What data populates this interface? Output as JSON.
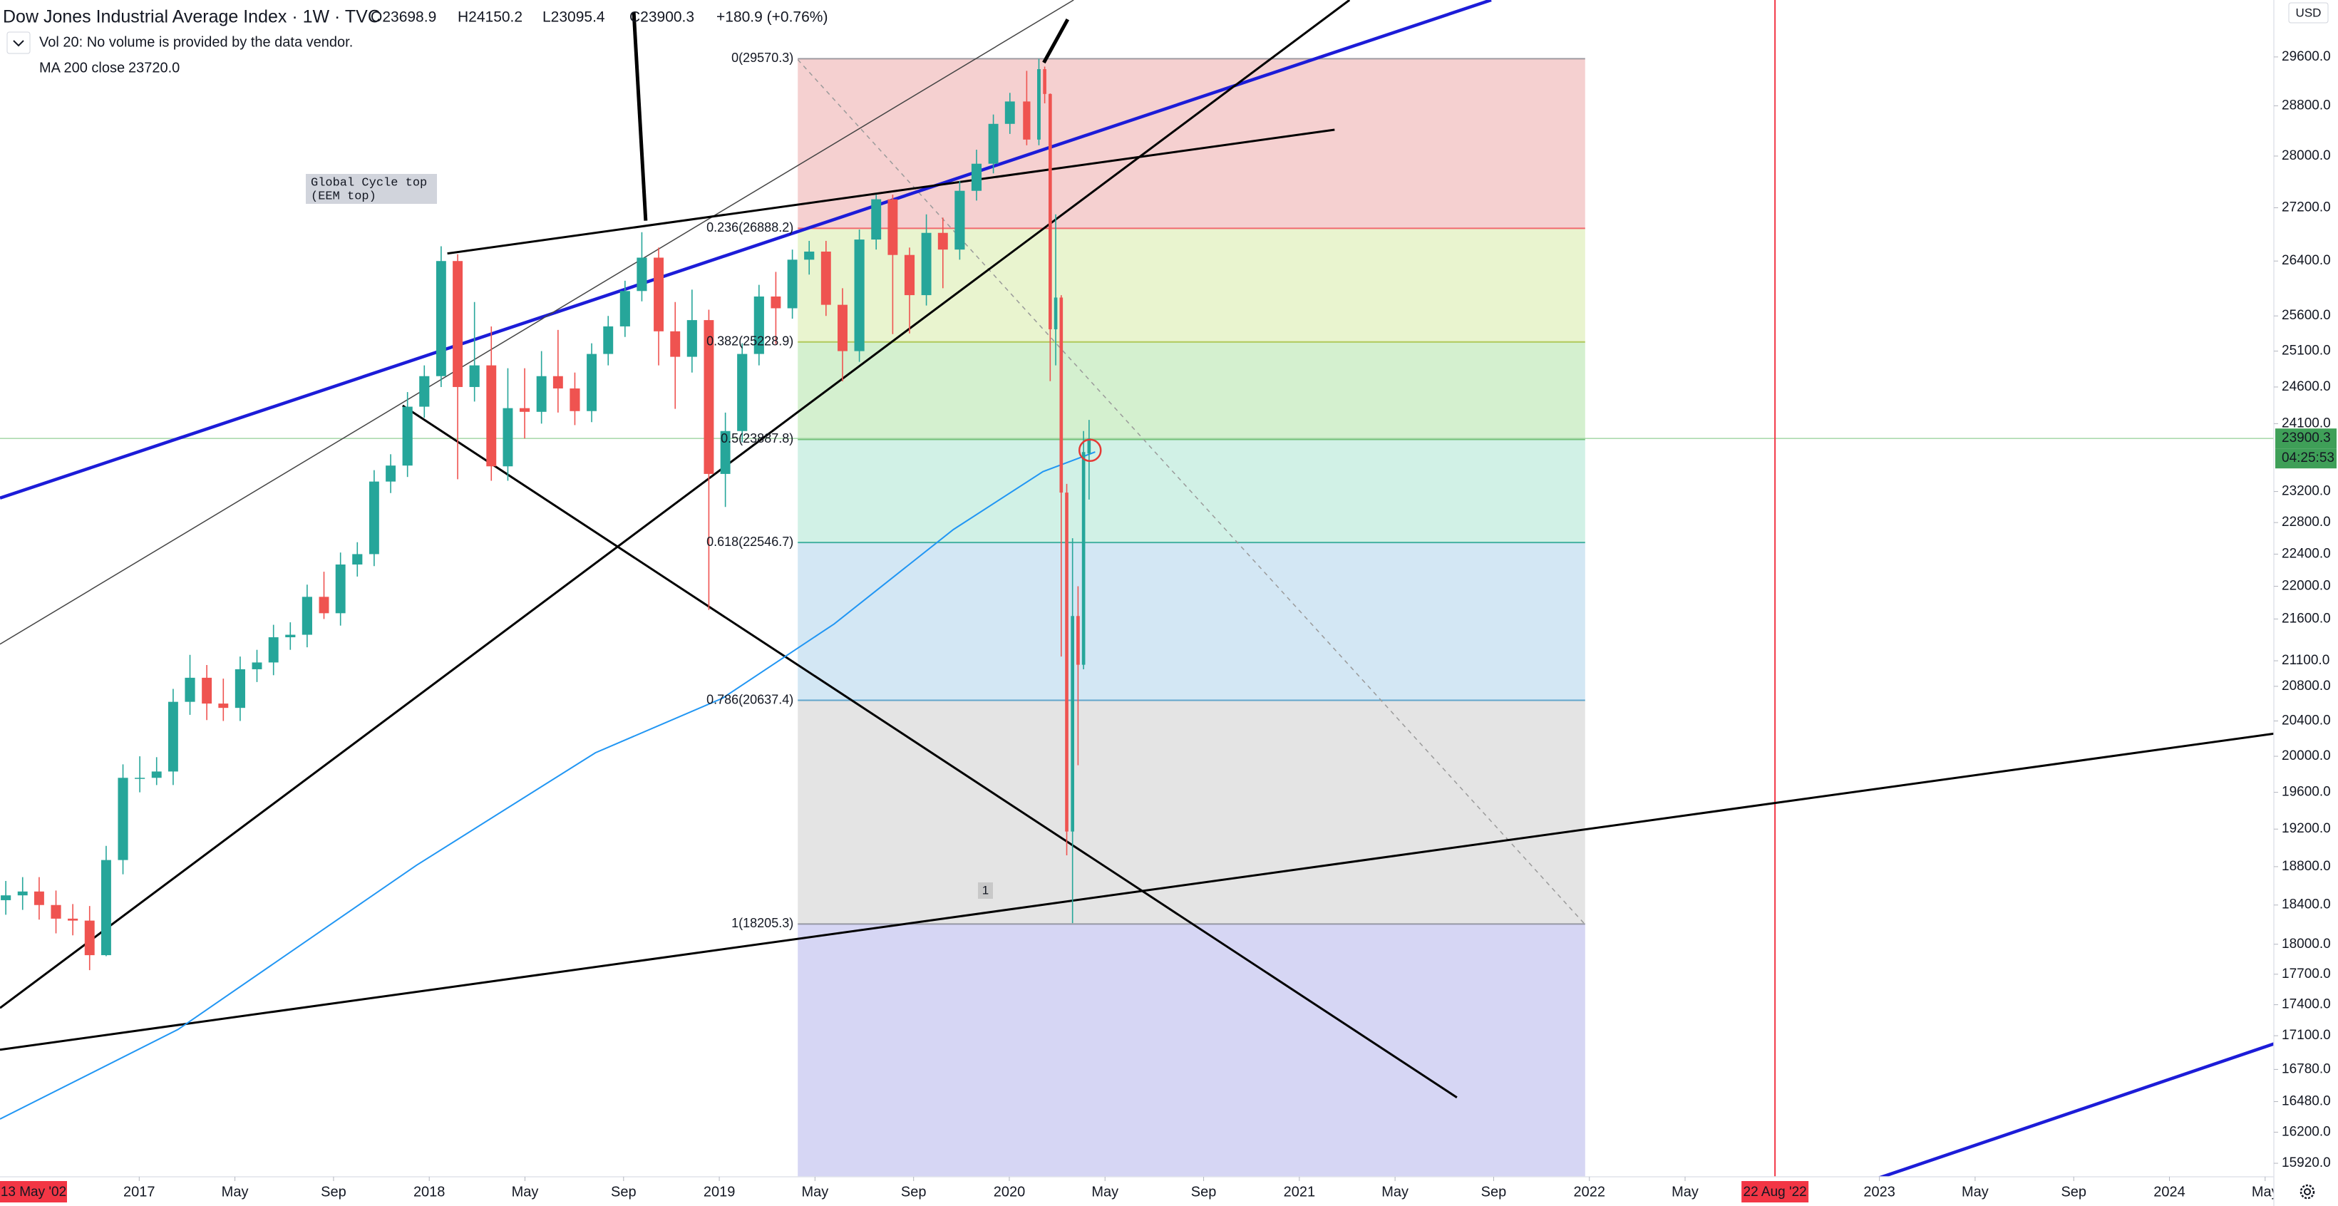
{
  "chart_data": {
    "type": "candlestick",
    "header": {
      "title": "Dow Jones Industrial Average Index · 1W · TVC",
      "open": "O23698.9",
      "high": "H24150.2",
      "low": "L23095.4",
      "close": "C23900.3",
      "change": "+180.9 (+0.76%)",
      "volume_note": "Vol 20: No volume is provided by the data vendor."
    },
    "up_color": "#26a69a",
    "down_color": "#ef5350",
    "x": [
      2016.54,
      2016.598,
      2016.655,
      2016.713,
      2016.771,
      2016.829,
      2016.886,
      2016.944,
      2017.002,
      2017.06,
      2017.117,
      2017.175,
      2017.233,
      2017.29,
      2017.348,
      2017.406,
      2017.463,
      2017.521,
      2017.579,
      2017.637,
      2017.694,
      2017.752,
      2017.81,
      2017.867,
      2017.925,
      2017.983,
      2018.041,
      2018.098,
      2018.156,
      2018.214,
      2018.271,
      2018.329,
      2018.387,
      2018.444,
      2018.502,
      2018.56,
      2018.617,
      2018.675,
      2018.733,
      2018.791,
      2018.848,
      2018.906,
      2018.964,
      2019.021,
      2019.079,
      2019.137,
      2019.195,
      2019.252,
      2019.31,
      2019.368,
      2019.425,
      2019.483,
      2019.541,
      2019.598,
      2019.656,
      2019.714,
      2019.771,
      2019.829,
      2019.887,
      2019.945,
      2020.002,
      2020.06,
      2020.102,
      2020.122,
      2020.141,
      2020.16,
      2020.179,
      2020.198,
      2020.218,
      2020.237,
      2020.256,
      2020.275
    ],
    "open": [
      18450,
      18500,
      18540,
      18400,
      18260,
      18240,
      17890,
      18870,
      19760,
      19760,
      19830,
      20620,
      20900,
      20600,
      20550,
      21000,
      21080,
      21380,
      21410,
      21870,
      21670,
      22270,
      22400,
      23330,
      23540,
      24330,
      24750,
      26400,
      24600,
      24900,
      23530,
      24310,
      24260,
      24750,
      24580,
      24270,
      25060,
      25450,
      25960,
      26450,
      25380,
      25020,
      25540,
      23430,
      24000,
      25060,
      25880,
      25710,
      26420,
      26540,
      25760,
      25100,
      26720,
      27330,
      26490,
      25900,
      26820,
      26570,
      27460,
      27880,
      28510,
      28870,
      28260,
      29398,
      28992,
      25409,
      25865,
      23186,
      19174,
      21636,
      21053,
      23698.9
    ],
    "high": [
      18650,
      18690,
      18690,
      18550,
      18410,
      18390,
      19020,
      19910,
      20000,
      19990,
      20770,
      21170,
      21050,
      20890,
      21150,
      21230,
      21530,
      21560,
      22020,
      22180,
      22420,
      22550,
      23480,
      23690,
      24530,
      24900,
      26620,
      26500,
      25800,
      25450,
      24860,
      24860,
      25100,
      25400,
      24800,
      25210,
      25600,
      26110,
      26830,
      26600,
      25800,
      25980,
      25690,
      24250,
      25210,
      26050,
      26240,
      26570,
      26700,
      26700,
      26000,
      26870,
      27400,
      27400,
      26600,
      27100,
      27050,
      27610,
      28100,
      28660,
      29010,
      29370,
      29568,
      29440,
      29000,
      27100,
      25900,
      23300,
      22600,
      22000,
      24000,
      24150.2
    ],
    "low": [
      18300,
      18350,
      18250,
      18110,
      18090,
      17740,
      17880,
      18720,
      19600,
      19680,
      19680,
      20470,
      20410,
      20400,
      20400,
      20850,
      20930,
      21230,
      21260,
      21600,
      21520,
      22120,
      22250,
      23180,
      23390,
      24180,
      24600,
      23360,
      24400,
      23340,
      23340,
      23900,
      24100,
      24250,
      24080,
      24120,
      24900,
      25300,
      25810,
      24900,
      24300,
      24800,
      21710,
      23000,
      23850,
      24900,
      25200,
      25560,
      26200,
      25600,
      24680,
      24950,
      26570,
      25340,
      25350,
      25750,
      26000,
      26420,
      27310,
      27730,
      28350,
      28170,
      28170,
      28840,
      24681,
      24900,
      21150,
      18920,
      18214,
      19900,
      21000,
      23095.4
    ],
    "close": [
      18500,
      18540,
      18400,
      18260,
      18240,
      17890,
      18870,
      19760,
      19760,
      19830,
      20620,
      20900,
      20600,
      20550,
      21000,
      21080,
      21380,
      21410,
      21870,
      21670,
      22270,
      22400,
      23330,
      23540,
      24330,
      24750,
      26400,
      24600,
      24900,
      23530,
      24310,
      24260,
      24750,
      24580,
      24270,
      25060,
      25450,
      25960,
      26450,
      25380,
      25020,
      25540,
      23430,
      24000,
      25060,
      25880,
      25710,
      26420,
      26540,
      25760,
      25100,
      26720,
      27330,
      26490,
      25900,
      26820,
      26570,
      27460,
      27880,
      28510,
      28870,
      28260,
      29398,
      28992,
      25409,
      25865,
      23186,
      19174,
      21636,
      21053,
      23719,
      23900.3
    ],
    "ma": {
      "name": "MA 200 close",
      "last_label": "23720.0",
      "color": "#2196f3",
      "x": [
        2016.52,
        2017.134,
        2017.956,
        2018.573,
        2019.01,
        2019.396,
        2019.807,
        2020.116,
        2020.296
      ],
      "values": [
        16320,
        17160,
        18815,
        20040,
        20660,
        21540,
        22710,
        23460,
        23720
      ]
    },
    "fib": [
      {
        "label": "0(29570.3)",
        "price": 29570.3,
        "color": "#787b86",
        "fill": "#f5d0d0"
      },
      {
        "label": "0.236(26888.2)",
        "price": 26888.2,
        "color": "#f23645",
        "fill": "#e9f4cf"
      },
      {
        "label": "0.382(25228.9)",
        "price": 25228.9,
        "color": "#9cb82a",
        "fill": "#d4f0cf"
      },
      {
        "label": "0.5(23887.8)",
        "price": 23887.8,
        "color": "#4caf50",
        "fill": "#d1f1e6"
      },
      {
        "label": "0.618(22546.7)",
        "price": 22546.7,
        "color": "#089981",
        "fill": "#d3e7f4"
      },
      {
        "label": "0.786(20637.4)",
        "price": 20637.4,
        "color": "#2f8bbf",
        "fill": "#e4e4e4"
      },
      {
        "label": "1(18205.3)",
        "price": 18205.3,
        "color": "#787b86",
        "fill": "#d6d6f4"
      }
    ],
    "annotations": {
      "cycle_top": [
        "Global Cycle top",
        "(EEM top)"
      ],
      "marker": "1"
    },
    "cursor": {
      "x": 2022.64,
      "label": "22 Aug '22",
      "left_label": "13 May '02"
    },
    "price_axis": {
      "currency": "USD",
      "countdown": "04:25:53",
      "last_color": "#3f9f58"
    },
    "log": true,
    "grid": false,
    "xlim": [
      2016.52,
      2024.36
    ],
    "ylim": [
      15800,
      30560
    ],
    "xticks": [
      2017,
      {
        "value": 2017.33,
        "label": "May"
      },
      {
        "value": 2017.67,
        "label": "Sep"
      },
      2018,
      {
        "value": 2018.33,
        "label": "May"
      },
      {
        "value": 2018.67,
        "label": "Sep"
      },
      2019,
      {
        "value": 2019.33,
        "label": "May"
      },
      {
        "value": 2019.67,
        "label": "Sep"
      },
      2020,
      {
        "value": 2020.33,
        "label": "May"
      },
      {
        "value": 2020.67,
        "label": "Sep"
      },
      2021,
      {
        "value": 2021.33,
        "label": "May"
      },
      {
        "value": 2021.67,
        "label": "Sep"
      },
      2022,
      {
        "value": 2022.33,
        "label": "May"
      },
      2023,
      {
        "value": 2023.33,
        "label": "May"
      },
      {
        "value": 2023.67,
        "label": "Sep"
      },
      2024,
      {
        "value": 2024.33,
        "label": "May"
      }
    ],
    "yticks": [
      {
        "value": 29600,
        "label": "29600.0"
      },
      {
        "value": 28800,
        "label": "28800.0"
      },
      {
        "value": 28000,
        "label": "28000.0"
      },
      {
        "value": 27200,
        "label": "27200.0"
      },
      {
        "value": 26400,
        "label": "26400.0"
      },
      {
        "value": 25600,
        "label": "25600.0"
      },
      {
        "value": 25100,
        "label": "25100.0"
      },
      {
        "value": 24600,
        "label": "24600.0"
      },
      {
        "value": 24100,
        "label": "24100.0"
      },
      {
        "value": 23200,
        "label": "23200.0"
      },
      {
        "value": 22800,
        "label": "22800.0"
      },
      {
        "value": 22400,
        "label": "22400.0"
      },
      {
        "value": 22000,
        "label": "22000.0"
      },
      {
        "value": 21600,
        "label": "21600.0"
      },
      {
        "value": 21100,
        "label": "21100.0"
      },
      {
        "value": 20800,
        "label": "20800.0"
      },
      {
        "value": 20400,
        "label": "20400.0"
      },
      {
        "value": 20000,
        "label": "20000.0"
      },
      {
        "value": 19600,
        "label": "19600.0"
      },
      {
        "value": 19200,
        "label": "19200.0"
      },
      {
        "value": 18800,
        "label": "18800.0"
      },
      {
        "value": 18400,
        "label": "18400.0"
      },
      {
        "value": 18000,
        "label": "18000.0"
      },
      {
        "value": 17700,
        "label": "17700.0"
      },
      {
        "value": 17400,
        "label": "17400.0"
      },
      {
        "value": 17100,
        "label": "17100.0"
      },
      {
        "value": 16780,
        "label": "16780.0"
      },
      {
        "value": 16480,
        "label": "16480.0"
      },
      {
        "value": 16200,
        "label": "16200.0"
      },
      {
        "value": 15920,
        "label": "15920.0"
      }
    ]
  }
}
